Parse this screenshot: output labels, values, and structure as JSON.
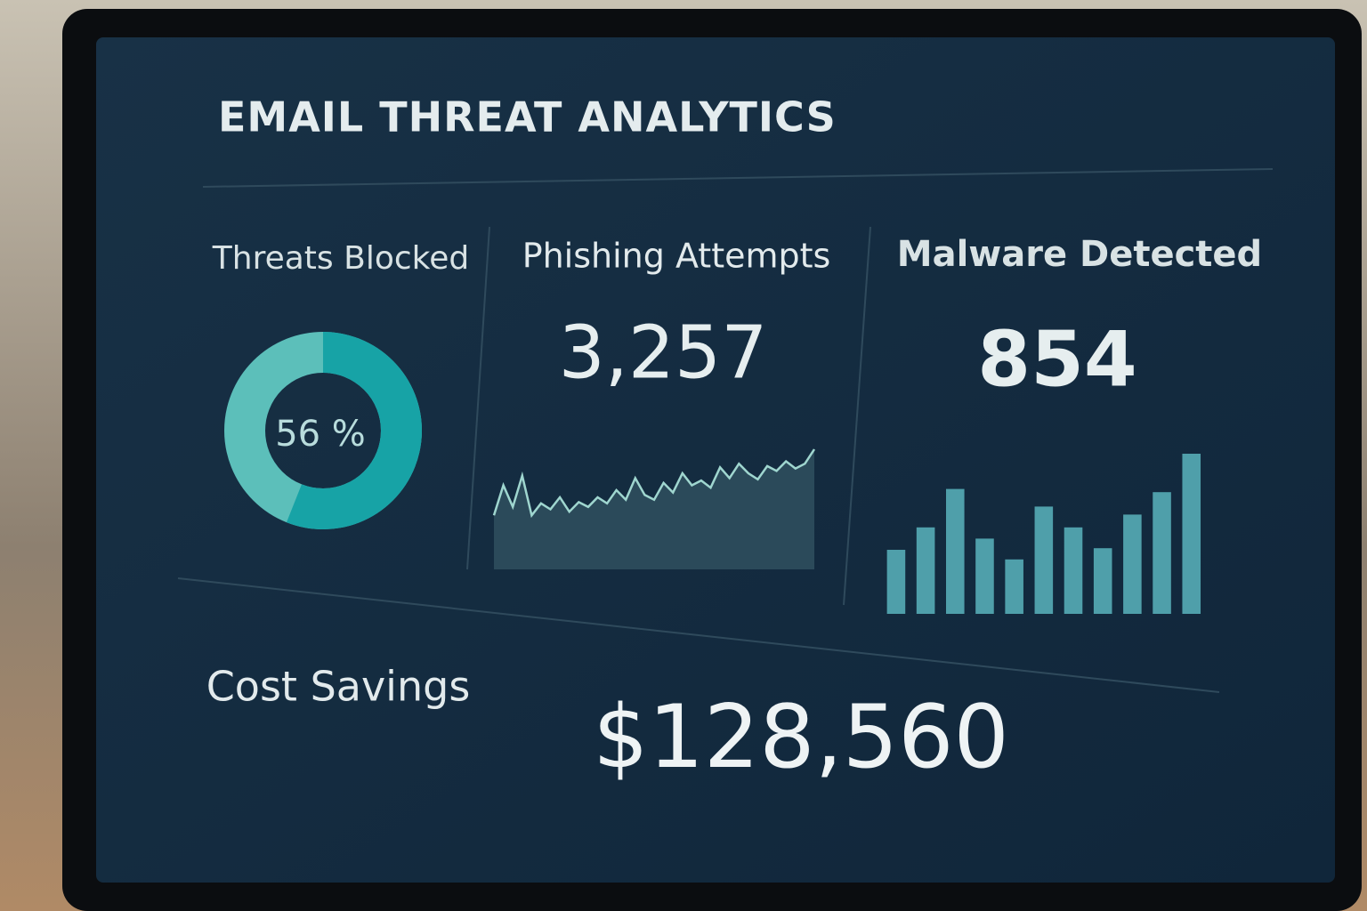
{
  "header": {
    "title": "EMAIL THREAT ANALYTICS"
  },
  "panels": [
    {
      "title": "Threats Blocked",
      "donut": {
        "value": 56,
        "label": "56 %"
      }
    },
    {
      "title": "Phishing Attempts",
      "value": "3,257",
      "sparkline": {
        "ylim": [
          0,
          100
        ],
        "values": [
          45,
          70,
          52,
          78,
          45,
          55,
          50,
          60,
          48,
          56,
          52,
          60,
          55,
          66,
          58,
          76,
          62,
          58,
          72,
          64,
          80,
          70,
          74,
          68,
          85,
          76,
          88,
          80,
          75,
          86,
          82,
          90,
          84,
          88,
          100
        ]
      }
    },
    {
      "title": "Malware Detected",
      "value": "854",
      "bars": {
        "ylim": [
          0,
          100
        ],
        "values": [
          40,
          54,
          78,
          47,
          34,
          67,
          54,
          41,
          62,
          76,
          100
        ]
      }
    }
  ],
  "footer": {
    "label": "Cost Savings",
    "value": "$128,560"
  }
}
